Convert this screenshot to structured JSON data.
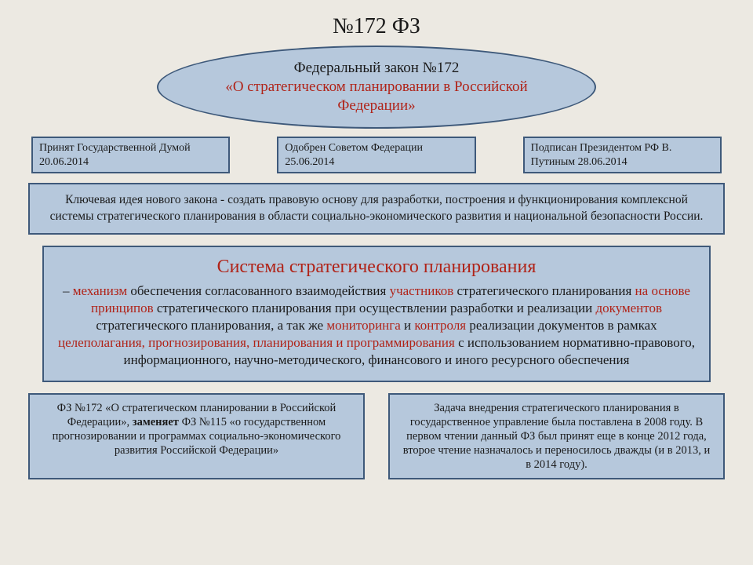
{
  "colors": {
    "slide_bg": "#ece9e2",
    "box_fill": "#b6c8dc",
    "box_border": "#3e597a",
    "text_dark": "#1a1a1a",
    "text_red": "#b02318"
  },
  "title": "№172 ФЗ",
  "ellipse": {
    "line1": "Федеральный закон №172",
    "line2": "«О стратегическом планировании в Российской Федерации»"
  },
  "approvals": [
    "Принят Государственной Думой 20.06.2014",
    "Одобрен Советом Федерации 25.06.2014",
    "Подписан Президентом РФ В. Путиным 28.06.2014"
  ],
  "key_idea": "Ключевая идея нового закона - создать правовую основу для разработки, построения и функционирования комплексной системы стратегического планирования в области социально-экономического развития и национальной безопасности России.",
  "system": {
    "title": "Система стратегического планирования",
    "segments": [
      {
        "t": "– ",
        "c": "dark"
      },
      {
        "t": "механизм",
        "c": "red"
      },
      {
        "t": " обеспечения согласованного взаимодействия ",
        "c": "dark"
      },
      {
        "t": "участников",
        "c": "red"
      },
      {
        "t": " стратегического планирования ",
        "c": "dark"
      },
      {
        "t": "на основе принципов",
        "c": "red"
      },
      {
        "t": " стратегического планирования при осуществлении разработки и реализации ",
        "c": "dark"
      },
      {
        "t": "документов",
        "c": "red"
      },
      {
        "t": " стратегического планирования, а так же ",
        "c": "dark"
      },
      {
        "t": "мониторинга",
        "c": "red"
      },
      {
        "t": " и ",
        "c": "dark"
      },
      {
        "t": "контроля",
        "c": "red"
      },
      {
        "t": " реализации документов в рамках ",
        "c": "dark"
      },
      {
        "t": "целеполагания, прогнозирования, планирования и программирования",
        "c": "red"
      },
      {
        "t": " с использованием нормативно-правового, информационного, научно-методического, финансового и иного ресурсного обеспечения",
        "c": "dark"
      }
    ]
  },
  "bottom_left": {
    "segments": [
      {
        "t": "ФЗ №172 «О стратегическом планировании в Российской Федерации», ",
        "b": false
      },
      {
        "t": "заменяет",
        "b": true
      },
      {
        "t": " ФЗ №115 «о государственном прогнозировании и программах социально-экономического развития Российской Федерации»",
        "b": false
      }
    ]
  },
  "bottom_right": "Задача внедрения стратегического планирования в государственное управление была поставлена в 2008 году. В первом чтении данный ФЗ был принят еще в конце 2012 года, второе чтение назначалось и переносилось дважды (и в 2013, и в 2014 году)."
}
